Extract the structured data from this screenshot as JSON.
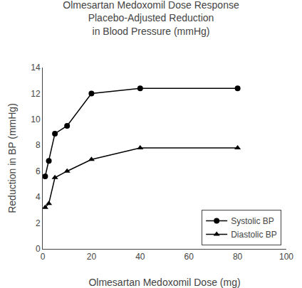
{
  "chart_data": {
    "type": "line",
    "title": "Olmesartan Medoxomil Dose Response\nPlacebo-Adjusted Reduction\nin Blood Pressure (mmHg)",
    "x_label": "Olmesartan Medoxomil Dose (mg)",
    "y_label": "Reduction in BP (mmHg)",
    "x": [
      1,
      2.5,
      5,
      10,
      20,
      40,
      80
    ],
    "series": [
      {
        "name": "Systolic BP",
        "color": "#000000",
        "marker": "circle",
        "line_style": "solid",
        "values": [
          5.6,
          6.8,
          8.9,
          9.5,
          12.0,
          12.4,
          12.4
        ]
      },
      {
        "name": "Diastolic BP",
        "color": "#000000",
        "marker": "triangle-up",
        "line_style": "solid",
        "values": [
          3.2,
          3.5,
          5.5,
          6.0,
          6.9,
          7.8,
          7.8
        ]
      }
    ],
    "xlim": [
      0,
      100
    ],
    "xticks": [
      0,
      20,
      40,
      60,
      80,
      100
    ],
    "ylim": [
      0,
      14
    ],
    "yticks": [
      0,
      2,
      4,
      6,
      8,
      10,
      12,
      14
    ],
    "grid": false,
    "legend": "lower right"
  }
}
